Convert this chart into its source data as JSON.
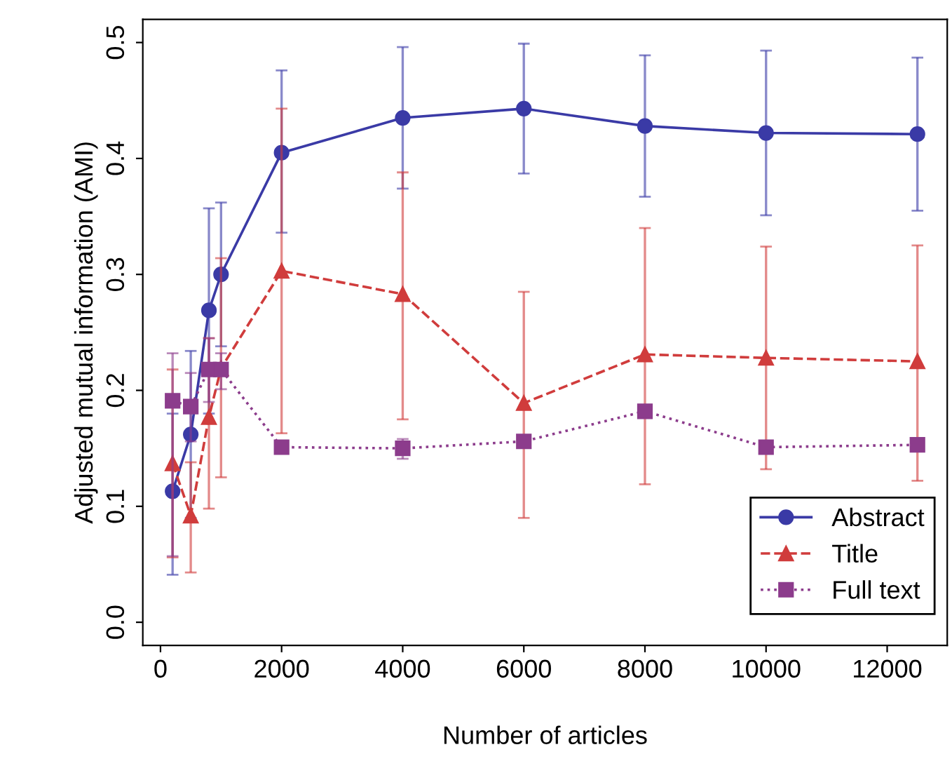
{
  "chart_data": {
    "type": "line",
    "xlabel": "Number of articles",
    "ylabel": "Adjusted mutual information (AMI)",
    "x": [
      200,
      500,
      800,
      1000,
      2000,
      4000,
      6000,
      8000,
      10000,
      12500
    ],
    "xlim": [
      -292,
      12992
    ],
    "ylim": [
      -0.02,
      0.52
    ],
    "xticks": [
      0,
      2000,
      4000,
      6000,
      8000,
      10000,
      12000
    ],
    "yticks": [
      {
        "value": 0,
        "label": "0.0"
      },
      {
        "value": 0.1,
        "label": "0.1"
      },
      {
        "value": 0.2,
        "label": "0.2"
      },
      {
        "value": 0.3,
        "label": "0.3"
      },
      {
        "value": 0.4,
        "label": "0.4"
      },
      {
        "value": 0.5,
        "label": "0.5"
      }
    ],
    "grid": false,
    "legend": "bottom right",
    "series": [
      {
        "name": "Abstract",
        "color": "#3a3aa6",
        "marker": "circle",
        "line_style": "solid",
        "values": [
          0.113,
          0.162,
          0.269,
          0.3,
          0.405,
          0.435,
          0.443,
          0.428,
          0.422,
          0.421
        ],
        "errors": [
          [
            0.041,
            0.18
          ],
          [
            0.09,
            0.234
          ],
          [
            0.18,
            0.357
          ],
          [
            0.238,
            0.362
          ],
          [
            0.336,
            0.476
          ],
          [
            0.374,
            0.496
          ],
          [
            0.387,
            0.499
          ],
          [
            0.367,
            0.489
          ],
          [
            0.351,
            0.493
          ],
          [
            0.355,
            0.487
          ]
        ]
      },
      {
        "name": "Title",
        "color": "#d03c3c",
        "marker": "triangle",
        "line_style": "dashed",
        "values": [
          0.137,
          0.092,
          0.177,
          0.219,
          0.303,
          0.283,
          0.189,
          0.231,
          0.228,
          0.225
        ],
        "errors": [
          [
            0.056,
            0.218
          ],
          [
            0.043,
            0.138
          ],
          [
            0.098,
            0.245
          ],
          [
            0.125,
            0.314
          ],
          [
            0.163,
            0.443
          ],
          [
            0.175,
            0.388
          ],
          [
            0.09,
            0.285
          ],
          [
            0.119,
            0.34
          ],
          [
            0.132,
            0.324
          ],
          [
            0.122,
            0.325
          ]
        ]
      },
      {
        "name": "Full text",
        "color": "#8c3c8c",
        "marker": "square",
        "line_style": "dotted",
        "values": [
          0.191,
          0.186,
          0.218,
          0.218,
          0.151,
          0.15,
          0.156,
          0.182,
          0.151,
          0.153
        ],
        "errors": [
          [
            0.057,
            0.232
          ],
          [
            0.156,
            0.215
          ],
          [
            0.19,
            0.245
          ],
          [
            0.201,
            0.232
          ],
          null,
          [
            0.141,
            0.158
          ],
          null,
          null,
          null,
          null
        ]
      }
    ]
  }
}
